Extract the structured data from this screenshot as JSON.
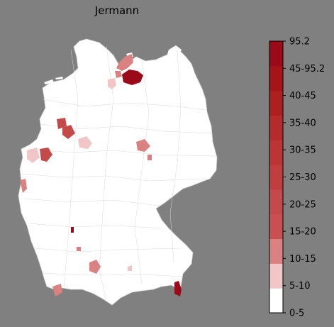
{
  "map": {
    "title": "Jermann",
    "region": "Germany (districts)",
    "background_color": "#808080",
    "base_fill": "#ffffff",
    "border_color": "#c8c8c8"
  },
  "legend": {
    "orientation": "vertical",
    "placement": "right",
    "bins": [
      {
        "label": "0-5",
        "color": "#ffffff"
      },
      {
        "label": "5-10",
        "color": "#f0c6c6"
      },
      {
        "label": "10-15",
        "color": "#da8282"
      },
      {
        "label": "15-20",
        "color": "#c95050"
      },
      {
        "label": "20-25",
        "color": "#c44a4a"
      },
      {
        "label": "25-30",
        "color": "#c03e3e"
      },
      {
        "label": "30-35",
        "color": "#bb3535"
      },
      {
        "label": "35-40",
        "color": "#b52b2b"
      },
      {
        "label": "40-45",
        "color": "#ae2020"
      },
      {
        "label": "45-95.2",
        "color": "#a51518"
      },
      {
        "label": "",
        "color": "#9b0a18"
      }
    ],
    "tick_labels": [
      "0-5",
      "5-10",
      "10-15",
      "15-20",
      "20-25",
      "25-30",
      "30-35",
      "35-40",
      "40-45",
      "45-95.2",
      "95.2"
    ]
  },
  "highlighted_regions": [
    {
      "name": "rostock-area",
      "bin": "45-95.2"
    },
    {
      "name": "rostock-north",
      "bin": "10-15"
    },
    {
      "name": "holstein-east",
      "bin": "10-15"
    },
    {
      "name": "hamburg-west",
      "bin": "5-10"
    },
    {
      "name": "muenster-area",
      "bin": "20-25"
    },
    {
      "name": "osnabrueck-area",
      "bin": "20-25"
    },
    {
      "name": "bielefeld-area",
      "bin": "5-10"
    },
    {
      "name": "aachen-area",
      "bin": "5-10"
    },
    {
      "name": "cologne-area",
      "bin": "20-25"
    },
    {
      "name": "eifel-area",
      "bin": "10-15"
    },
    {
      "name": "kassel-east-area",
      "bin": "10-15"
    },
    {
      "name": "wuerzburg-area",
      "bin": "10-15"
    },
    {
      "name": "heilbronn-area",
      "bin": "45-95.2"
    },
    {
      "name": "stuttgart-area",
      "bin": "10-15"
    },
    {
      "name": "ulm-area",
      "bin": "10-15"
    },
    {
      "name": "lake-constance-area",
      "bin": "10-15"
    },
    {
      "name": "munich-area",
      "bin": "5-10"
    },
    {
      "name": "berchtesgaden-area",
      "bin": "45-95.2"
    }
  ]
}
